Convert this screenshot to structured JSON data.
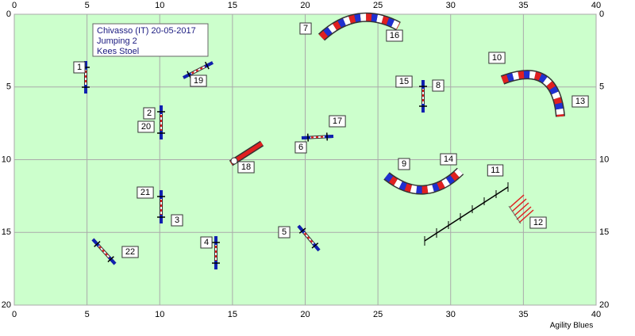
{
  "axes": {
    "x_ticks": [
      0,
      5,
      10,
      15,
      20,
      25,
      30,
      35,
      40
    ],
    "y_ticks": [
      0,
      5,
      10,
      15,
      20
    ]
  },
  "info": [
    "Chivasso  (IT) 20-05-2017",
    "Jumping 2",
    "Kees Stoel"
  ],
  "obstacle_labels": [
    1,
    2,
    3,
    4,
    5,
    6,
    7,
    8,
    9,
    10,
    11,
    12,
    13,
    14,
    15,
    16,
    17,
    18,
    19,
    20,
    21,
    22
  ],
  "footer": "Agility Blues"
}
